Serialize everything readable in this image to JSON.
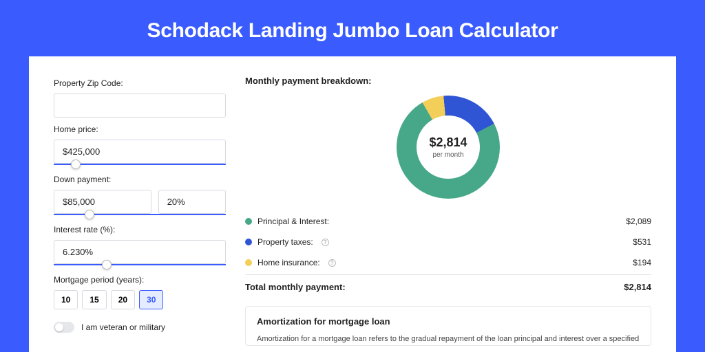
{
  "title": "Schodack Landing Jumbo Loan Calculator",
  "colors": {
    "page_bg": "#3a5cff",
    "panel_bg": "#ffffff",
    "accent": "#3a5cff",
    "text": "#222222"
  },
  "form": {
    "zip": {
      "label": "Property Zip Code:",
      "value": ""
    },
    "price": {
      "label": "Home price:",
      "value": "$425,000",
      "slider_pct": 10
    },
    "down": {
      "label": "Down payment:",
      "value": "$85,000",
      "pct_value": "20%",
      "slider_pct": 18
    },
    "rate": {
      "label": "Interest rate (%):",
      "value": "6.230%",
      "slider_pct": 28
    },
    "period": {
      "label": "Mortgage period (years):",
      "options": [
        "10",
        "15",
        "20",
        "30"
      ],
      "active_index": 3
    },
    "veteran_label": "I am veteran or military"
  },
  "breakdown": {
    "title": "Monthly payment breakdown:",
    "center_amount": "$2,814",
    "center_sub": "per month",
    "donut": {
      "slices": [
        {
          "label": "Principal & Interest:",
          "value": "$2,089",
          "color": "#46a889",
          "share": 0.742,
          "info": false
        },
        {
          "label": "Property taxes:",
          "value": "$531",
          "color": "#2f55d4",
          "share": 0.189,
          "info": true
        },
        {
          "label": "Home insurance:",
          "value": "$194",
          "color": "#f3cf5a",
          "share": 0.069,
          "info": true
        }
      ]
    },
    "total_label": "Total monthly payment:",
    "total_value": "$2,814"
  },
  "amortization": {
    "title": "Amortization for mortgage loan",
    "text": "Amortization for a mortgage loan refers to the gradual repayment of the loan principal and interest over a specified"
  }
}
